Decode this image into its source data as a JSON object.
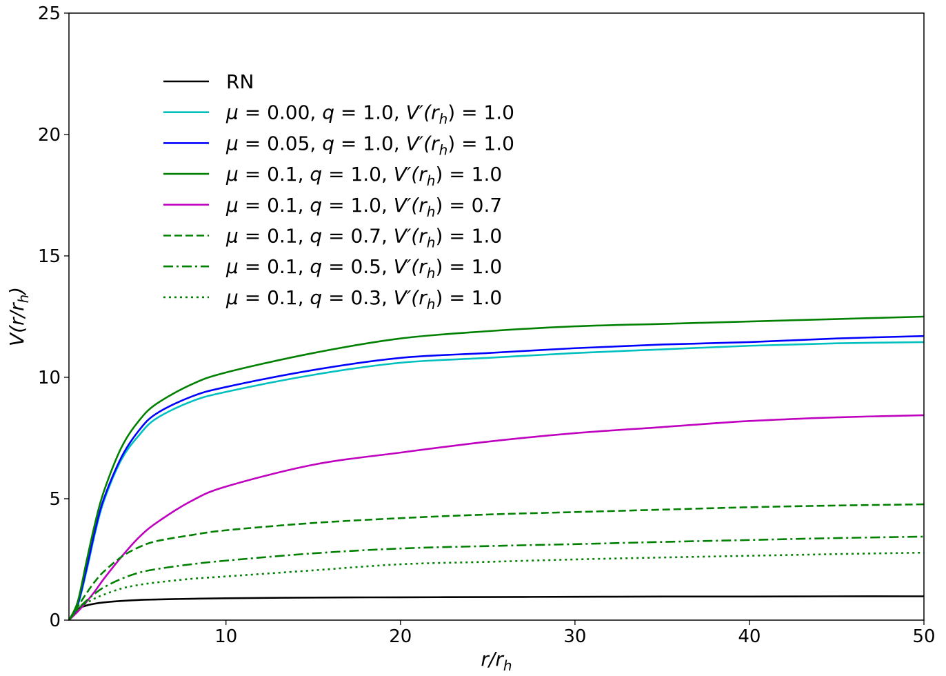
{
  "chart_data": {
    "type": "line",
    "title": "",
    "xlabel": "r/r_h",
    "ylabel": "V(r/r_h)",
    "xlim": [
      1,
      50
    ],
    "ylim": [
      0,
      25
    ],
    "xticks": [
      10,
      20,
      30,
      40,
      50
    ],
    "yticks": [
      0,
      5,
      10,
      15,
      20,
      25
    ],
    "grid": false,
    "legend_position": "upper left (inside)",
    "x": [
      1,
      1.5,
      2,
      2.5,
      3,
      4,
      5,
      6,
      8,
      10,
      15,
      20,
      25,
      30,
      35,
      40,
      45,
      50
    ],
    "series": [
      {
        "name": "RN",
        "color": "#000000",
        "style": "solid",
        "values": [
          0,
          0.45,
          0.6,
          0.68,
          0.73,
          0.79,
          0.83,
          0.85,
          0.88,
          0.9,
          0.93,
          0.94,
          0.95,
          0.96,
          0.97,
          0.97,
          0.98,
          0.98
        ]
      },
      {
        "name": "μ = 0.00, q = 1.0, V'(r_h) = 1.0",
        "color": "#00bfbf",
        "style": "solid",
        "values": [
          0,
          0.6,
          2.0,
          3.6,
          4.9,
          6.6,
          7.6,
          8.3,
          9.0,
          9.4,
          10.1,
          10.6,
          10.8,
          11.0,
          11.15,
          11.3,
          11.4,
          11.45
        ]
      },
      {
        "name": "μ = 0.05, q = 1.0, V'(r_h) = 1.0",
        "color": "#0000ff",
        "style": "solid",
        "values": [
          0,
          0.65,
          2.1,
          3.7,
          5.0,
          6.7,
          7.8,
          8.5,
          9.2,
          9.6,
          10.3,
          10.8,
          11.0,
          11.2,
          11.35,
          11.45,
          11.6,
          11.7
        ]
      },
      {
        "name": "μ = 0.1, q = 1.0, V'(r_h) = 1.0",
        "color": "#008000",
        "style": "solid",
        "values": [
          0,
          0.75,
          2.4,
          4.0,
          5.3,
          7.1,
          8.2,
          8.9,
          9.7,
          10.2,
          11.0,
          11.6,
          11.9,
          12.1,
          12.2,
          12.3,
          12.4,
          12.5
        ]
      },
      {
        "name": "μ = 0.1, q = 1.0, V'(r_h) = 0.7",
        "color": "#bf00bf",
        "style": "solid",
        "values": [
          0,
          0.35,
          0.75,
          1.2,
          1.7,
          2.6,
          3.4,
          4.0,
          4.9,
          5.5,
          6.4,
          6.9,
          7.35,
          7.7,
          7.95,
          8.2,
          8.35,
          8.44
        ]
      },
      {
        "name": "μ = 0.1, q = 0.7, V'(r_h) = 1.0",
        "color": "#008000",
        "style": "dashed",
        "values": [
          0,
          0.55,
          1.1,
          1.6,
          2.0,
          2.6,
          3.0,
          3.25,
          3.5,
          3.7,
          4.0,
          4.2,
          4.35,
          4.45,
          4.55,
          4.65,
          4.72,
          4.77
        ]
      },
      {
        "name": "μ = 0.1, q = 0.5, V'(r_h) = 1.0",
        "color": "#008000",
        "style": "dashdot",
        "values": [
          0,
          0.45,
          0.8,
          1.1,
          1.35,
          1.7,
          1.95,
          2.1,
          2.3,
          2.45,
          2.75,
          2.95,
          3.05,
          3.13,
          3.22,
          3.3,
          3.38,
          3.44
        ]
      },
      {
        "name": "μ = 0.1, q = 0.3, V'(r_h) = 1.0",
        "color": "#008000",
        "style": "dotted",
        "values": [
          0,
          0.45,
          0.7,
          0.9,
          1.05,
          1.3,
          1.45,
          1.55,
          1.7,
          1.8,
          2.05,
          2.3,
          2.4,
          2.5,
          2.58,
          2.65,
          2.72,
          2.78
        ]
      }
    ]
  },
  "axes": {
    "xlabel_main": "r/r",
    "xlabel_sub": "h",
    "ylabel_main": "V(r/r",
    "ylabel_sub": "h",
    "ylabel_close": ")"
  },
  "legend": {
    "items": [
      {
        "label": "RN"
      },
      {
        "mu": "0.00",
        "q": "1.0",
        "vp": "1.0"
      },
      {
        "mu": "0.05",
        "q": "1.0",
        "vp": "1.0"
      },
      {
        "mu": "0.1",
        "q": "1.0",
        "vp": "1.0"
      },
      {
        "mu": "0.1",
        "q": "1.0",
        "vp": "0.7"
      },
      {
        "mu": "0.1",
        "q": "0.7",
        "vp": "1.0"
      },
      {
        "mu": "0.1",
        "q": "0.5",
        "vp": "1.0"
      },
      {
        "mu": "0.1",
        "q": "0.3",
        "vp": "1.0"
      }
    ]
  }
}
